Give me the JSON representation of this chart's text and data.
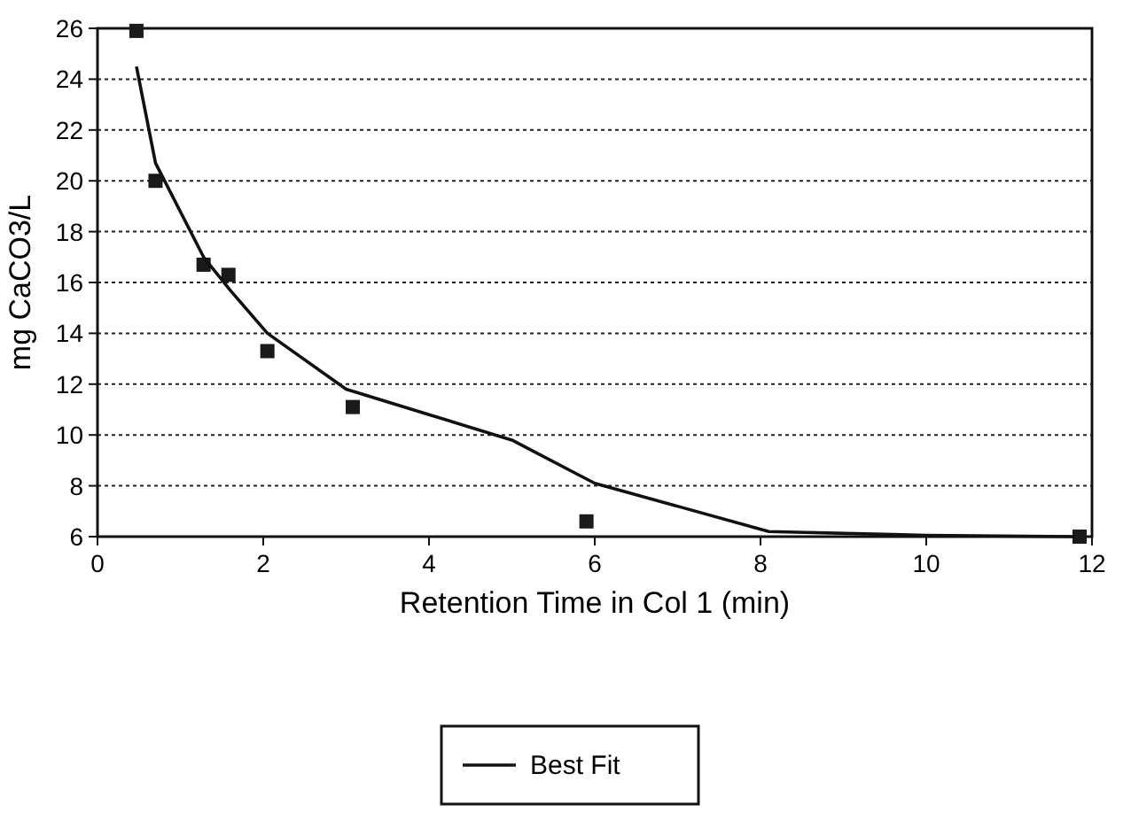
{
  "chart_data": {
    "type": "scatter",
    "xlabel": "Retention Time in Col 1 (min)",
    "ylabel": "mg CaCO3/L",
    "xlim": [
      0,
      12
    ],
    "xticks": [
      0,
      2,
      4,
      6,
      8,
      10,
      12
    ],
    "ylim": [
      6,
      26
    ],
    "yticks": [
      6,
      8,
      10,
      12,
      14,
      16,
      18,
      20,
      22,
      24,
      26
    ],
    "grid": "y",
    "legend": "bottom",
    "series": [
      {
        "color": "#1a1a1a",
        "marker": "square",
        "x": [
          0.47,
          0.7,
          1.28,
          1.58,
          2.05,
          3.08,
          5.9,
          11.85
        ],
        "values": [
          25.9,
          20,
          16.7,
          16.3,
          13.3,
          11.1,
          6.6,
          6
        ]
      },
      {
        "type": "line",
        "name": "Best Fit",
        "color": "#111111",
        "marker": "none",
        "line_style": "solid",
        "x": [
          0.47,
          0.7,
          1.28,
          1.6,
          2.05,
          3.0,
          4.0,
          5.0,
          6.0,
          8.1,
          10.0,
          11.8
        ],
        "values": [
          24.5,
          20.7,
          17,
          15.7,
          14,
          11.8,
          10.8,
          9.8,
          8.1,
          6.2,
          6.05,
          6
        ]
      }
    ]
  }
}
